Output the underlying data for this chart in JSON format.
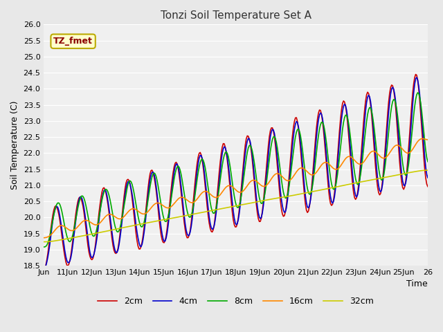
{
  "title": "Tonzi Soil Temperature Set A",
  "xlabel": "Time",
  "ylabel": "Soil Temperature (C)",
  "ylim": [
    18.5,
    26.0
  ],
  "annotation": "TZ_fmet",
  "legend": [
    "2cm",
    "4cm",
    "8cm",
    "16cm",
    "32cm"
  ],
  "colors": [
    "#cc0000",
    "#0000cc",
    "#00aa00",
    "#ff8800",
    "#cccc00"
  ],
  "bg_color": "#e8e8e8",
  "plot_bg": "#f0f0f0",
  "n_points": 384,
  "tick_labels": [
    "Jun",
    "11Jun",
    "12Jun",
    "13Jun",
    "14Jun",
    "15Jun",
    "16Jun",
    "17Jun",
    "18Jun",
    "19Jun",
    "20Jun",
    "21Jun",
    "22Jun",
    "23Jun",
    "24Jun",
    "25Jun",
    "26"
  ]
}
